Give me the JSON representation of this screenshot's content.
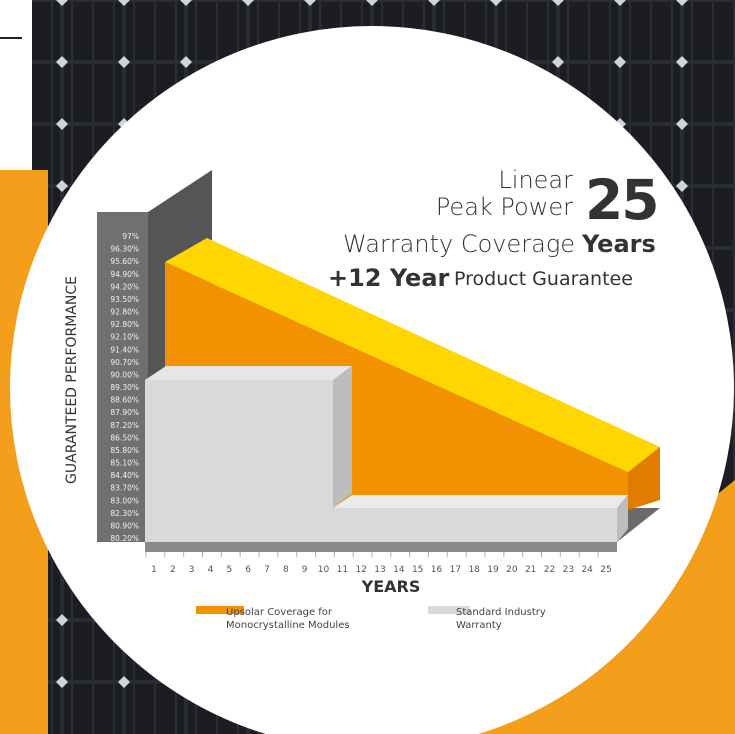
{
  "headline": {
    "line1": "Linear",
    "line2": "Peak Power",
    "big_number": "25",
    "line3": "Warranty Coverage",
    "years_word": "Years",
    "guarantee_bold": "+12 Year",
    "guarantee_rest": "Product  Guarantee"
  },
  "chart_data": {
    "type": "area",
    "ylabel": "GUARANTEED PERFORMANCE",
    "xlabel": "YEARS",
    "x": [
      1,
      2,
      3,
      4,
      5,
      6,
      7,
      8,
      9,
      10,
      11,
      12,
      13,
      14,
      15,
      16,
      17,
      18,
      19,
      20,
      21,
      22,
      23,
      24,
      25
    ],
    "y_ticks": [
      "97%",
      "96.30%",
      "95.60%",
      "94.90%",
      "94.20%",
      "93.50%",
      "92.80%",
      "92.80%",
      "92.10%",
      "91.40%",
      "90.70%",
      "90.00%",
      "89.30%",
      "88.60%",
      "87.90%",
      "87.20%",
      "86.50%",
      "85.80%",
      "85.10%",
      "84.40%",
      "83.70%",
      "83.00%",
      "82.30%",
      "80.90%",
      "80.20%"
    ],
    "series": [
      {
        "name": "Upsolar Coverage for Monocrystalline Modules",
        "color": "#f39200",
        "top_color": "#ffd600",
        "start": {
          "x": 1,
          "y": 95.6
        },
        "end": {
          "x": 25,
          "y": 84.4
        }
      },
      {
        "name": "Standard Industry Warranty",
        "color": "#d9d9d9",
        "steps": [
          {
            "x_from": 1,
            "x_to": 10,
            "y": 90.0
          },
          {
            "x_from": 10,
            "x_to": 25,
            "y": 80.9
          }
        ]
      }
    ],
    "legend": [
      {
        "label": "Upsolar Coverage for\nMonocrystalline Modules",
        "color": "#f39200"
      },
      {
        "label": "Standard Industry\nWarranty",
        "color": "#d9d9d9"
      }
    ],
    "legend_position": "bottom"
  }
}
